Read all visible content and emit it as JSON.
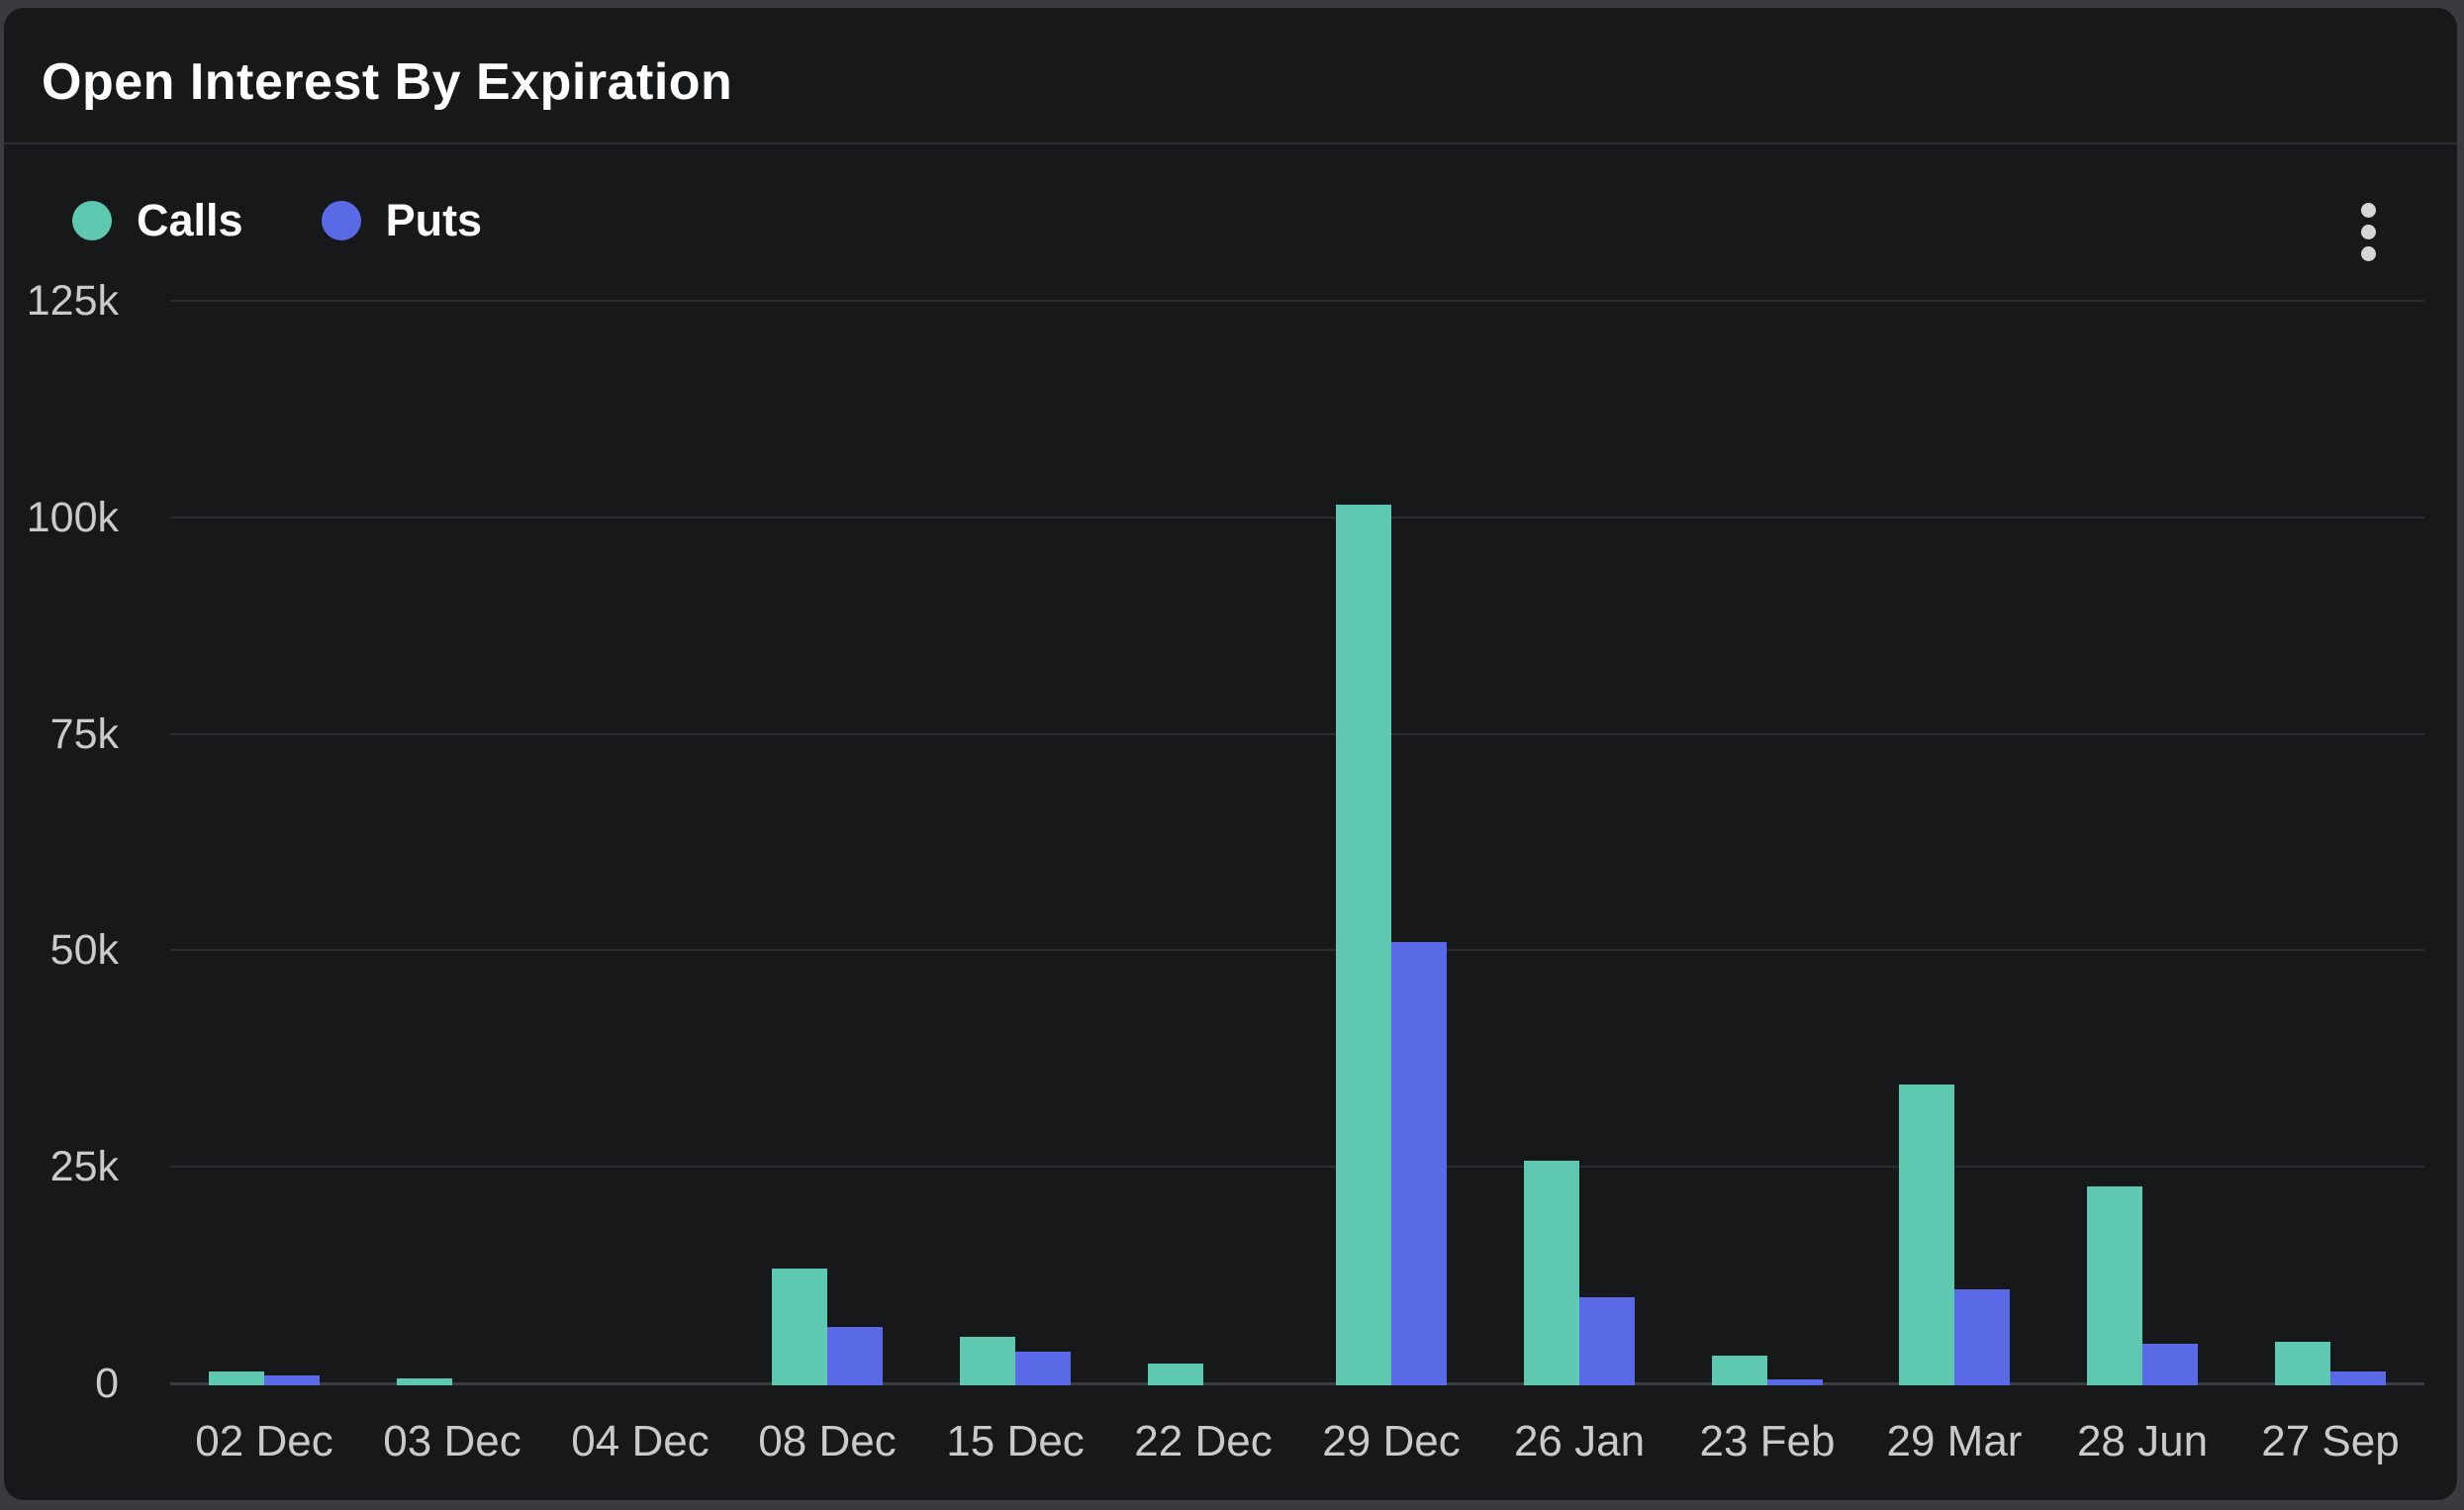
{
  "card": {
    "title": "Open Interest By Expiration"
  },
  "legend": {
    "items": [
      {
        "label": "Calls",
        "color": "#5EC8B0"
      },
      {
        "label": "Puts",
        "color": "#5A69E6"
      }
    ]
  },
  "menu": {
    "icon": "kebab-menu"
  },
  "chart_data": {
    "type": "bar",
    "title": "Open Interest By Expiration",
    "categories": [
      "02 Dec",
      "03 Dec",
      "04 Dec",
      "08 Dec",
      "15 Dec",
      "22 Dec",
      "29 Dec",
      "26 Jan",
      "23 Feb",
      "29 Mar",
      "28 Jun",
      "27 Sep"
    ],
    "series": [
      {
        "name": "Calls",
        "color": "#5EC8B0",
        "values": [
          1400,
          600,
          0,
          13300,
          5400,
          2300,
          101500,
          25700,
          3200,
          34500,
          22700,
          4800
        ]
      },
      {
        "name": "Puts",
        "color": "#5A69E6",
        "values": [
          900,
          0,
          0,
          6500,
          3600,
          0,
          51000,
          9900,
          500,
          10900,
          4600,
          1400
        ]
      }
    ],
    "ylim": [
      0,
      125000
    ],
    "yticks": [
      {
        "value": 125000,
        "label": "125k"
      },
      {
        "value": 100000,
        "label": "100k"
      },
      {
        "value": 75000,
        "label": "75k"
      },
      {
        "value": 50000,
        "label": "50k"
      },
      {
        "value": 25000,
        "label": "25k"
      },
      {
        "value": 0,
        "label": "0"
      }
    ],
    "grid": true,
    "legend_position": "top-left"
  }
}
